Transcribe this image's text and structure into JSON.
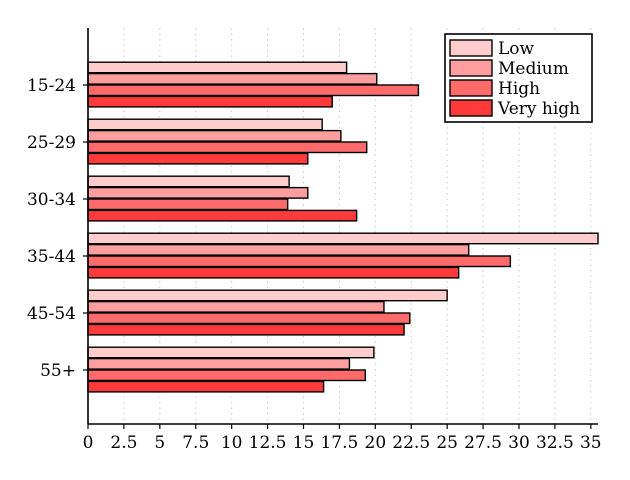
{
  "chart_data": {
    "type": "bar",
    "orientation": "horizontal",
    "title": "",
    "xlabel": "",
    "ylabel": "",
    "xlim": [
      0,
      35.5
    ],
    "xticks": [
      "0",
      "2.5",
      "5",
      "7.5",
      "10",
      "12.5",
      "15",
      "17.5",
      "20",
      "22.5",
      "25",
      "27.5",
      "30",
      "32.5",
      "35"
    ],
    "categories": [
      "15-24",
      "25-29",
      "30-34",
      "35-44",
      "45-54",
      "55+"
    ],
    "grid": "vertical-dotted",
    "legend_position": "top-right",
    "series": [
      {
        "name": "Low",
        "color": "#ffcccc",
        "values": [
          18.0,
          16.3,
          14.0,
          35.5,
          25.0,
          19.9
        ]
      },
      {
        "name": "Medium",
        "color": "#ff9e9e",
        "values": [
          20.1,
          17.6,
          15.3,
          26.5,
          20.6,
          18.2
        ]
      },
      {
        "name": "High",
        "color": "#ff6b6b",
        "values": [
          23.0,
          19.4,
          13.9,
          29.4,
          22.4,
          19.3
        ]
      },
      {
        "name": "Very high",
        "color": "#ff3a3a",
        "values": [
          17.0,
          15.3,
          18.7,
          25.8,
          22.0,
          16.4
        ]
      }
    ]
  }
}
